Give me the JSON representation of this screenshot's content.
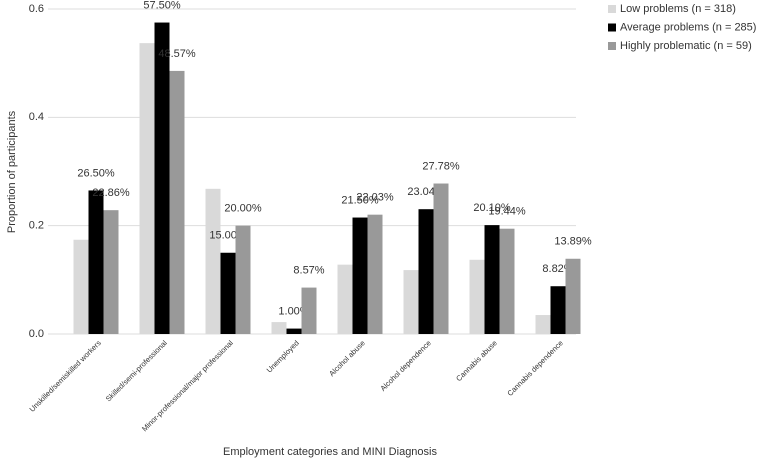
{
  "chart_data": {
    "type": "bar",
    "x_label": "Employment categories and MINI Diagnosis",
    "y_label": "Proportion of participants",
    "categories": [
      "Unskilled/semiskilled workers",
      "Skilled/semi-professional",
      "Minor-professional/major professional",
      "Unemployed",
      "Alcohol abuse",
      "Alcohol dependence",
      "Cannabis abuse",
      "Cannabis dependence"
    ],
    "series": [
      {
        "name": "Low problems (n = 318)",
        "color": "#d9d9d9",
        "values": [
          0.174,
          0.537,
          0.268,
          0.022,
          0.128,
          0.118,
          0.137,
          0.035
        ]
      },
      {
        "name": "Average problems (n = 285)",
        "color": "#000000",
        "values": [
          0.265,
          0.575,
          0.15,
          0.01,
          0.215,
          0.2304,
          0.201,
          0.0882
        ],
        "value_labels": [
          "26.50%",
          "57.50%",
          "15.00%",
          "1.00%",
          "21.50%",
          "23.04%",
          "20.10%",
          "8.82%"
        ]
      },
      {
        "name": "Highly problematic (n = 59)",
        "color": "#999999",
        "values": [
          0.2286,
          0.4857,
          0.2,
          0.0857,
          0.2203,
          0.2778,
          0.1944,
          0.1389
        ],
        "value_labels": [
          "22.86%",
          "48.57%",
          "20.00%",
          "8.57%",
          "22.03%",
          "27.78%",
          "19.44%",
          "13.89%"
        ]
      }
    ],
    "ylim": [
      0,
      0.6
    ],
    "yticks": [
      {
        "value": 0,
        "label": "0.0"
      },
      0.2,
      0.4,
      0.6
    ],
    "grid": true,
    "legend": "right"
  }
}
